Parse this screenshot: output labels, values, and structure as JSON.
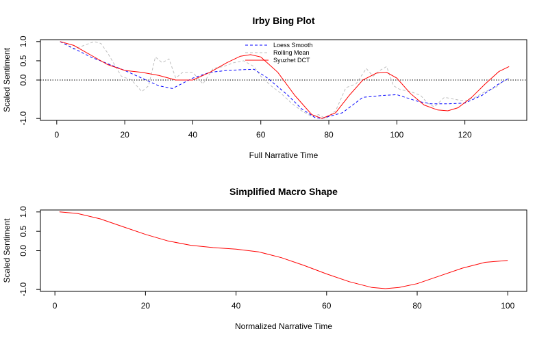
{
  "chart_data": [
    {
      "type": "line",
      "title": "Irby Bing Plot",
      "xlabel": "Full Narrative Time",
      "ylabel": "Scaled Sentiment",
      "xlim": [
        1,
        133
      ],
      "ylim": [
        -1,
        1
      ],
      "xticks": [
        0,
        20,
        40,
        60,
        80,
        100,
        120
      ],
      "xtick_labels": [
        "0",
        "20",
        "40",
        "60",
        "80",
        "100",
        "120"
      ],
      "yticks": [
        1,
        0.5,
        0,
        -1
      ],
      "ytick_labels": [
        "1.0",
        "0.5",
        "0.0",
        "-1.0"
      ],
      "zero_line": true,
      "legend": {
        "placement": "top-center",
        "entries": [
          {
            "label": "Loess Smooth",
            "color": "#0000ff",
            "style": "dashed"
          },
          {
            "label": "Rolling Mean",
            "color": "#bebebe",
            "style": "dashed"
          },
          {
            "label": "Syuzhet DCT",
            "color": "#ff0000",
            "style": "solid"
          }
        ]
      },
      "series": [
        {
          "name": "Loess Smooth",
          "color": "#0000ff",
          "style": "dashed",
          "x": [
            1,
            10,
            20,
            25,
            30,
            34,
            40,
            45,
            50,
            55,
            58,
            62,
            68,
            72,
            76,
            78,
            84,
            90,
            96,
            100,
            106,
            110,
            115,
            120,
            125,
            130,
            133
          ],
          "values": [
            1.0,
            0.6,
            0.25,
            0.05,
            -0.15,
            -0.22,
            0.05,
            0.2,
            0.25,
            0.27,
            0.28,
            0.05,
            -0.4,
            -0.75,
            -0.98,
            -1.0,
            -0.85,
            -0.45,
            -0.4,
            -0.38,
            -0.55,
            -0.62,
            -0.62,
            -0.6,
            -0.4,
            -0.1,
            0.05
          ]
        },
        {
          "name": "Rolling Mean",
          "color": "#bebebe",
          "style": "dashed",
          "x": [
            1,
            5,
            8,
            11,
            13,
            15,
            17,
            19,
            22,
            25,
            27,
            29,
            31,
            33,
            35,
            37,
            40,
            43,
            46,
            49,
            52,
            55,
            58,
            60,
            63,
            66,
            69,
            72,
            75,
            77,
            79,
            82,
            85,
            88,
            91,
            93,
            95,
            97,
            99,
            101,
            104,
            107,
            109,
            111,
            114,
            117,
            120,
            123,
            126,
            129,
            131,
            133
          ],
          "values": [
            1.0,
            0.8,
            0.9,
            1.0,
            0.95,
            0.7,
            0.4,
            0.1,
            0.0,
            -0.3,
            -0.15,
            0.6,
            0.45,
            0.55,
            0.05,
            0.2,
            0.2,
            -0.1,
            0.3,
            0.35,
            0.45,
            0.5,
            0.35,
            0.1,
            -0.15,
            -0.35,
            -0.6,
            -0.8,
            -0.95,
            -0.9,
            -1.0,
            -0.8,
            -0.2,
            -0.1,
            0.3,
            0.1,
            0.25,
            0.35,
            -0.15,
            -0.25,
            -0.3,
            -0.4,
            -0.6,
            -0.7,
            -0.45,
            -0.5,
            -0.55,
            -0.45,
            -0.3,
            -0.2,
            -0.05,
            0.05
          ]
        },
        {
          "name": "Syuzhet DCT",
          "color": "#ff0000",
          "style": "solid",
          "x": [
            1,
            5,
            10,
            15,
            20,
            25,
            30,
            35,
            40,
            45,
            50,
            54,
            57,
            60,
            65,
            70,
            75,
            78,
            82,
            86,
            90,
            94,
            97,
            100,
            104,
            108,
            112,
            115,
            118,
            122,
            126,
            130,
            133
          ],
          "values": [
            1.0,
            0.9,
            0.65,
            0.4,
            0.25,
            0.2,
            0.12,
            0.0,
            0.0,
            0.2,
            0.45,
            0.62,
            0.66,
            0.6,
            0.2,
            -0.4,
            -0.9,
            -1.0,
            -0.85,
            -0.4,
            0.0,
            0.18,
            0.2,
            0.05,
            -0.35,
            -0.65,
            -0.78,
            -0.8,
            -0.72,
            -0.45,
            -0.1,
            0.22,
            0.35
          ]
        }
      ]
    },
    {
      "type": "line",
      "title": "Simplified Macro Shape",
      "xlabel": "Normalized Narrative Time",
      "ylabel": "Scaled Sentiment",
      "xlim": [
        1,
        100
      ],
      "ylim": [
        -1,
        1
      ],
      "xticks": [
        0,
        20,
        40,
        60,
        80,
        100
      ],
      "xtick_labels": [
        "0",
        "20",
        "40",
        "60",
        "80",
        "100"
      ],
      "yticks": [
        1,
        0.5,
        0,
        -1
      ],
      "ytick_labels": [
        "1.0",
        "0.5",
        "0.0",
        "-1.0"
      ],
      "zero_line": false,
      "series": [
        {
          "color": "#ff0000",
          "style": "solid",
          "x": [
            1,
            5,
            10,
            15,
            20,
            25,
            30,
            35,
            40,
            45,
            50,
            55,
            60,
            65,
            70,
            73,
            76,
            80,
            85,
            90,
            95,
            100
          ],
          "values": [
            1.0,
            0.96,
            0.82,
            0.62,
            0.42,
            0.25,
            0.14,
            0.08,
            0.04,
            -0.03,
            -0.18,
            -0.38,
            -0.6,
            -0.8,
            -0.95,
            -0.98,
            -0.95,
            -0.85,
            -0.65,
            -0.45,
            -0.3,
            -0.25
          ]
        }
      ]
    }
  ]
}
